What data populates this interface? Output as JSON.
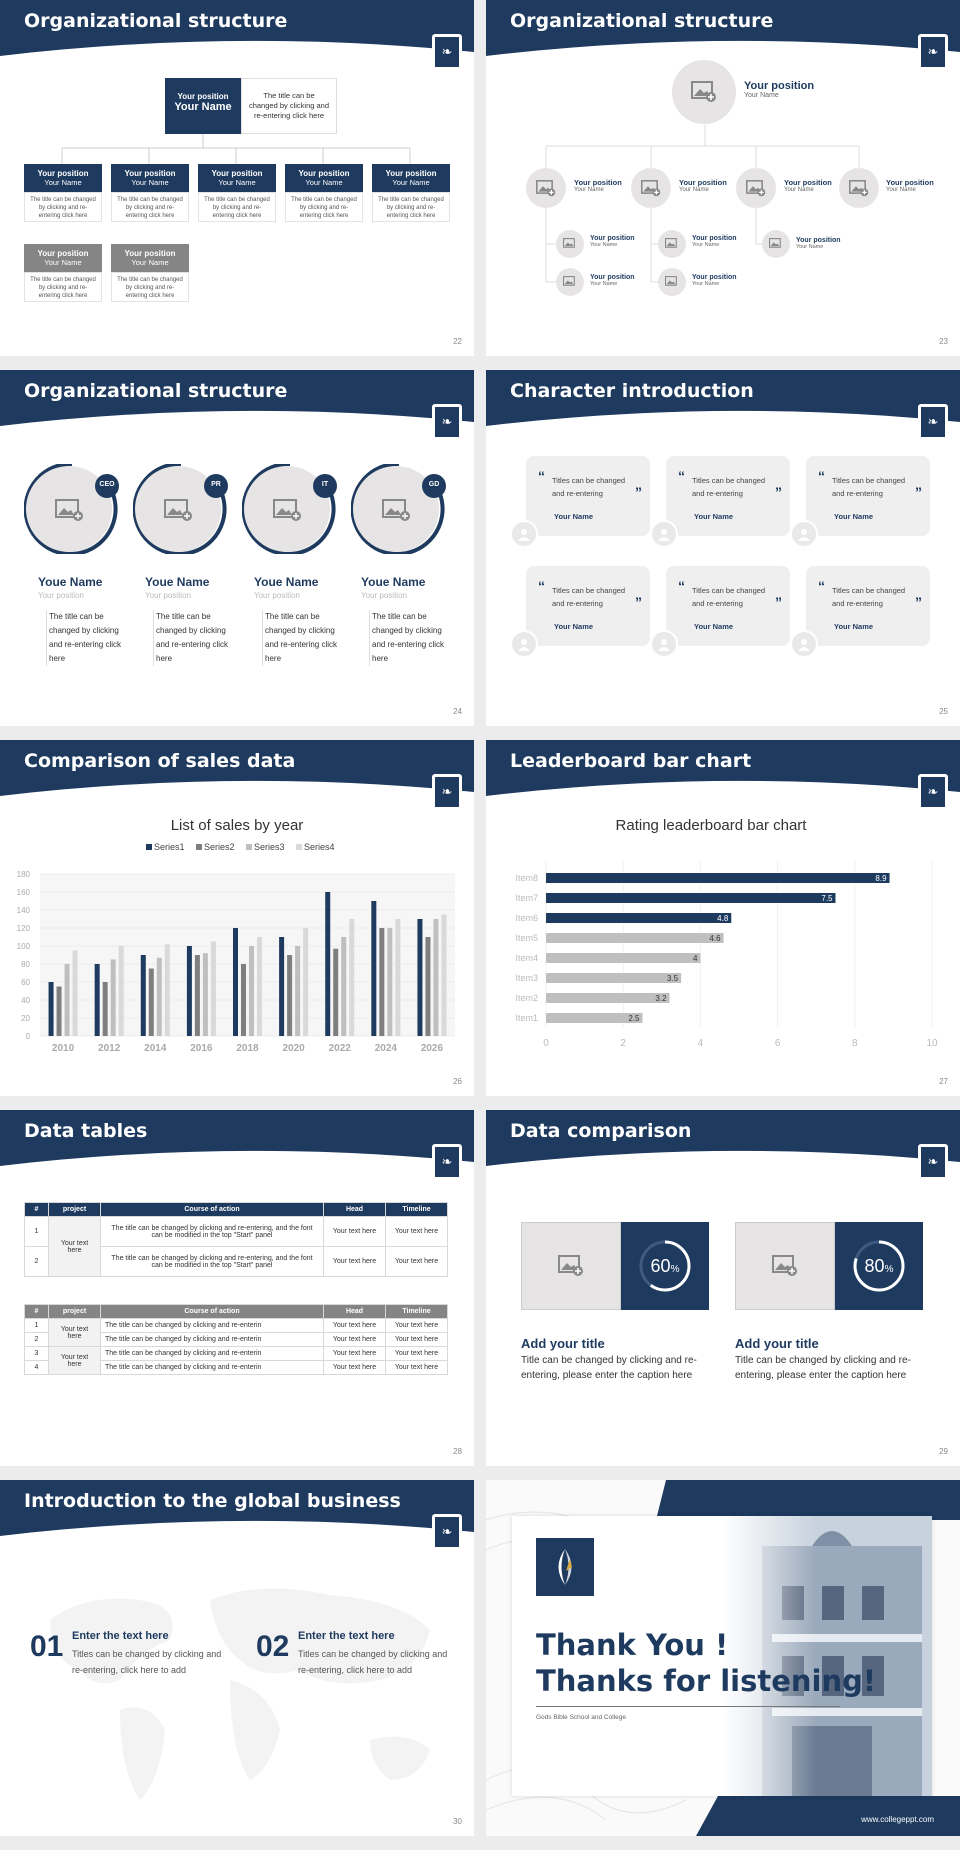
{
  "slides": {
    "s22": {
      "title": "Organizational structure",
      "page": "22",
      "top": {
        "position": "Your position",
        "name": "Your Name",
        "desc": "The title can be changed by clicking and re-entering click here"
      },
      "cards": [
        {
          "position": "Your position",
          "name": "Your Name",
          "desc": "The title can be changed by clicking and re-entering click here"
        },
        {
          "position": "Your position",
          "name": "Your Name",
          "desc": "The title can be changed by clicking and re-entering click here"
        },
        {
          "position": "Your position",
          "name": "Your Name",
          "desc": "The title can be changed by clicking and re-entering click here"
        },
        {
          "position": "Your position",
          "name": "Your Name",
          "desc": "The title can be changed by clicking and re-entering click here"
        },
        {
          "position": "Your position",
          "name": "Your Name",
          "desc": "The title can be changed by clicking and re-entering click here"
        },
        {
          "position": "Your position",
          "name": "Your Name",
          "desc": "The title can be changed by clicking and re-entering click here"
        },
        {
          "position": "Your position",
          "name": "Your Name",
          "desc": "The title can be changed by clicking and re-entering click here"
        }
      ]
    },
    "s23": {
      "title": "Organizational structure",
      "page": "23",
      "top": {
        "position": "Your position",
        "name": "Your Name"
      },
      "row": [
        {
          "position": "Your position",
          "name": "Your Name"
        },
        {
          "position": "Your position",
          "name": "Your Name"
        },
        {
          "position": "Your position",
          "name": "Your Name"
        },
        {
          "position": "Your position",
          "name": "Your Name"
        }
      ],
      "sub": [
        {
          "position": "Your position",
          "name": "Your Name"
        },
        {
          "position": "Your position",
          "name": "Your Name"
        },
        {
          "position": "Your position",
          "name": "Your Name"
        },
        {
          "position": "Your position",
          "name": "Your Name"
        },
        {
          "position": "Your position",
          "name": "Your Name"
        }
      ]
    },
    "s24": {
      "title": "Organizational structure",
      "page": "24",
      "people": [
        {
          "badge": "CEO",
          "name": "Youe Name",
          "position": "Your position",
          "desc": "The title can be changed by clicking and re-entering click here"
        },
        {
          "badge": "PR",
          "name": "Youe Name",
          "position": "Your position",
          "desc": "The title can be changed by clicking and re-entering click here"
        },
        {
          "badge": "IT",
          "name": "Youe Name",
          "position": "Your position",
          "desc": "The title can be changed by clicking and re-entering click here"
        },
        {
          "badge": "GD",
          "name": "Youe Name",
          "position": "Your position",
          "desc": "The title can be changed by clicking and re-entering click here"
        }
      ]
    },
    "s25": {
      "title": "Character introduction",
      "page": "25",
      "quotes": [
        {
          "text": "Titles can be changed and re-entering",
          "name": "Your Name"
        },
        {
          "text": "Titles can be changed and re-entering",
          "name": "Your Name"
        },
        {
          "text": "Titles can be changed and re-entering",
          "name": "Your Name"
        },
        {
          "text": "Titles can be changed and re-entering",
          "name": "Your Name"
        },
        {
          "text": "Titles can be changed and re-entering",
          "name": "Your Name"
        },
        {
          "text": "Titles can be changed and re-entering",
          "name": "Your Name"
        }
      ]
    },
    "s26": {
      "title": "Comparison of sales data",
      "page": "26"
    },
    "s27": {
      "title": "Leaderboard bar chart",
      "page": "27"
    },
    "s28": {
      "title": "Data tables",
      "page": "28",
      "table1": {
        "headers": [
          "#",
          "project",
          "Course of action",
          "Head",
          "Timeline"
        ],
        "merged": "Your text here",
        "rows": [
          {
            "n": "1",
            "action": "The title can be changed by clicking and re-entering, and the font can be modified in the top \"Start\" panel",
            "head": "Your text here",
            "time": "Your text here"
          },
          {
            "n": "2",
            "action": "The title can be changed by clicking and re-entering, and the font can be modified in the top \"Start\" panel",
            "head": "Your text here",
            "time": "Your text here"
          }
        ]
      },
      "table2": {
        "headers": [
          "#",
          "project",
          "Course of action",
          "Head",
          "Timeline"
        ],
        "merged_a": "Your text here",
        "merged_b": "Your text here",
        "rows": [
          {
            "n": "1",
            "action": "The title can be changed by clicking and re-enterin",
            "head": "Your text here",
            "time": "Your text here"
          },
          {
            "n": "2",
            "action": "The title can be changed by clicking and re-enterin",
            "head": "Your text here",
            "time": "Your text here"
          },
          {
            "n": "3",
            "action": "The title can be changed by clicking and re-enterin",
            "head": "Your text here",
            "time": "Your text here"
          },
          {
            "n": "4",
            "action": "The title can be changed by clicking and re-enterin",
            "head": "Your text here",
            "time": "Your text here"
          }
        ]
      }
    },
    "s29": {
      "title": "Data comparison",
      "page": "29",
      "items": [
        {
          "value": "60",
          "unit": "%",
          "percent": 60,
          "title": "Add your title",
          "desc": "Title can be changed by clicking and re-entering, please enter the caption here"
        },
        {
          "value": "80",
          "unit": "%",
          "percent": 80,
          "title": "Add your title",
          "desc": "Title can be changed by clicking and re-entering, please enter the caption here"
        }
      ]
    },
    "s30": {
      "title": "Introduction to the global business",
      "page": "30",
      "items": [
        {
          "num": "01",
          "title": "Enter the text here",
          "desc": "Titles can be changed by clicking and re-entering, click here to add"
        },
        {
          "num": "02",
          "title": "Enter the text here",
          "desc": "Titles can be changed by clicking and re-entering, click here to add"
        }
      ]
    },
    "s31": {
      "line1": "Thank You !",
      "line2": "Thanks for listening!",
      "school": "Gods Bible School and College",
      "url": "www.collegeppt.com"
    }
  },
  "colors": {
    "navy": "#1e3a5f",
    "gray": "#858585",
    "light": "#e6e4e4"
  },
  "chart_data": [
    {
      "type": "bar",
      "title": "List of sales by year",
      "categories": [
        "2010",
        "2012",
        "2014",
        "2016",
        "2018",
        "2020",
        "2022",
        "2024",
        "2026"
      ],
      "ylim": [
        0,
        180
      ],
      "yticks": [
        "0",
        "20",
        "40",
        "60",
        "80",
        "100",
        "120",
        "140",
        "160",
        "180"
      ],
      "legend": "top",
      "series": [
        {
          "name": "Series1",
          "color": "#1e3a5f",
          "values": [
            60,
            80,
            90,
            100,
            120,
            110,
            160,
            150,
            130
          ]
        },
        {
          "name": "Series2",
          "color": "#7f7f7f",
          "values": [
            55,
            60,
            75,
            90,
            80,
            90,
            97,
            120,
            110
          ]
        },
        {
          "name": "Series3",
          "color": "#bfbfbf",
          "values": [
            80,
            85,
            87,
            92,
            100,
            100,
            110,
            120,
            130
          ]
        },
        {
          "name": "Series4",
          "color": "#d9d9d9",
          "values": [
            95,
            100,
            102,
            105,
            110,
            120,
            130,
            130,
            135
          ]
        }
      ]
    },
    {
      "type": "bar",
      "orientation": "horizontal",
      "title": "Rating leaderboard bar chart",
      "categories": [
        "Item8",
        "Item7",
        "Item6",
        "Item5",
        "Item4",
        "Item3",
        "Item2",
        "Item1"
      ],
      "values": [
        8.9,
        7.5,
        4.8,
        4.6,
        4,
        3.5,
        3.2,
        2.5
      ],
      "labels": [
        "8.9",
        "7.5",
        "4.8",
        "4.6",
        "4",
        "3.5",
        "3.2",
        "2.5"
      ],
      "xlim": [
        0,
        10
      ],
      "xticks": [
        "0",
        "2",
        "4",
        "6",
        "8",
        "10"
      ],
      "colors": [
        "#1e3a5f",
        "#1e3a5f",
        "#1e3a5f",
        "#bfbfbf",
        "#bfbfbf",
        "#bfbfbf",
        "#bfbfbf",
        "#bfbfbf"
      ]
    }
  ]
}
